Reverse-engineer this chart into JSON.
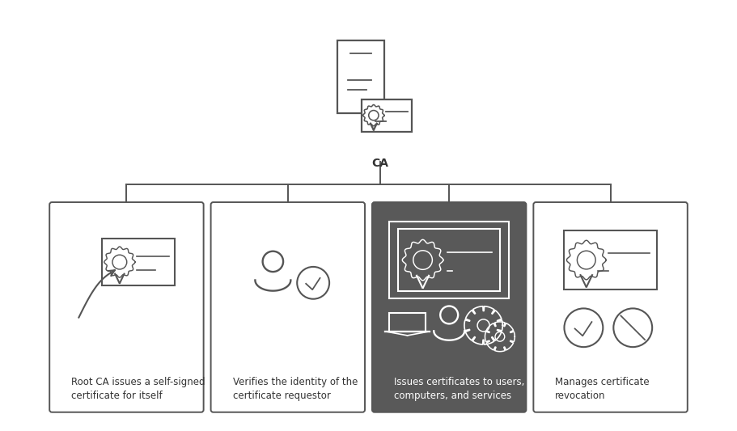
{
  "bg_color": "#ffffff",
  "border_color": "#555555",
  "dark_box_color": "#595959",
  "text_color": "#333333",
  "white_color": "#ffffff",
  "ca_label": "CA",
  "figsize": [
    9.11,
    5.33
  ],
  "dpi": 100,
  "boxes": [
    {
      "dark": false,
      "label": "Root CA issues a self-signed\ncertificate for itself"
    },
    {
      "dark": false,
      "label": "Verifies the identity of the\ncertificate requestor"
    },
    {
      "dark": true,
      "label": "Issues certificates to users,\ncomputers, and services"
    },
    {
      "dark": false,
      "label": "Manages certificate\nrevocation"
    }
  ]
}
